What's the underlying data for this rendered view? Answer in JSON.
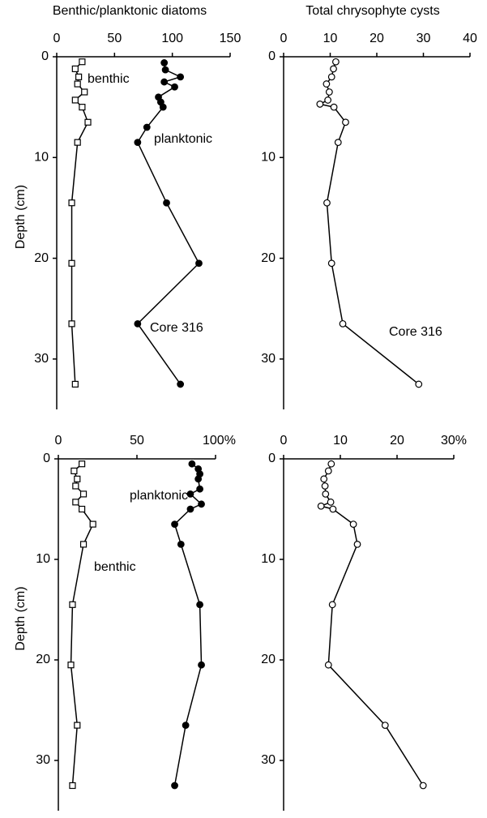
{
  "chart_data": [
    {
      "type": "line",
      "title": "Benthic/planktonic diatoms",
      "ylabel": "Depth (cm)",
      "xlim": [
        0,
        150
      ],
      "xticks": [
        0,
        50,
        100,
        150
      ],
      "ylim": [
        0,
        35
      ],
      "yticks": [
        0,
        10,
        20,
        30
      ],
      "series": [
        {
          "name": "benthic",
          "marker": "square",
          "filled": false,
          "depths": [
            0.5,
            1.2,
            2,
            2.7,
            3.5,
            4.3,
            5,
            6.5,
            8.5,
            14.5,
            20.5,
            26.5,
            32.5
          ],
          "values": [
            22,
            16,
            19,
            18,
            24,
            16,
            22,
            27,
            18,
            13,
            13,
            13,
            16
          ]
        },
        {
          "name": "planktonic",
          "marker": "circle",
          "filled": true,
          "depths": [
            0.6,
            1.3,
            2,
            2.5,
            3,
            4,
            4.5,
            5,
            7,
            8.5,
            14.5,
            20.5,
            26.5,
            32.5
          ],
          "values": [
            93,
            94,
            107,
            93,
            102,
            88,
            90,
            92,
            78,
            70,
            95,
            123,
            70,
            107
          ]
        }
      ],
      "annotations": [
        "Core 316"
      ]
    },
    {
      "type": "line",
      "title": "Total chrysophyte cysts",
      "xlim": [
        0,
        40
      ],
      "xticks": [
        0,
        10,
        20,
        30,
        40
      ],
      "ylim": [
        0,
        35
      ],
      "yticks": [
        0,
        10,
        20,
        30
      ],
      "series": [
        {
          "marker": "circle",
          "filled": false,
          "depths": [
            0.5,
            1.2,
            2,
            2.7,
            3.5,
            4.3,
            4.7,
            5,
            6.5,
            8.5,
            14.5,
            20.5,
            26.5,
            32.5
          ],
          "values": [
            11.2,
            10.7,
            10.3,
            9.2,
            9.8,
            9.5,
            7.8,
            10.8,
            13.3,
            11.7,
            9.3,
            10.3,
            12.7,
            29
          ]
        }
      ],
      "annotations": [
        "Core 316"
      ]
    },
    {
      "type": "line",
      "ylabel": "Depth (cm)",
      "xlim": [
        0,
        100
      ],
      "xticks": [
        0,
        50,
        {
          "value": 100,
          "label": "100%"
        }
      ],
      "ylim": [
        0,
        35
      ],
      "yticks": [
        0,
        10,
        20,
        30
      ],
      "series": [
        {
          "name": "benthic",
          "marker": "square",
          "filled": false,
          "depths": [
            0.5,
            1.2,
            2,
            2.7,
            3.5,
            4.3,
            5,
            6.5,
            8.5,
            14.5,
            20.5,
            26.5,
            32.5
          ],
          "values": [
            15,
            10,
            12,
            11,
            16,
            11,
            15,
            22,
            16,
            9,
            8,
            12,
            9
          ]
        },
        {
          "name": "planktonic",
          "marker": "circle",
          "filled": true,
          "depths": [
            0.5,
            1,
            1.5,
            2,
            3,
            3.5,
            4.5,
            5,
            6.5,
            8.5,
            14.5,
            20.5,
            26.5,
            32.5
          ],
          "values": [
            85,
            89,
            90,
            89,
            90,
            84,
            91,
            84,
            74,
            78,
            90,
            91,
            81,
            74
          ]
        }
      ]
    },
    {
      "type": "line",
      "xlim": [
        0,
        30
      ],
      "xticks": [
        0,
        10,
        20,
        {
          "value": 30,
          "label": "30%"
        }
      ],
      "ylim": [
        0,
        35
      ],
      "yticks": [
        0,
        10,
        20,
        30
      ],
      "series": [
        {
          "marker": "circle",
          "filled": false,
          "depths": [
            0.5,
            1.2,
            2,
            2.7,
            3.5,
            4.3,
            4.7,
            5,
            6.5,
            8.5,
            14.5,
            20.5,
            26.5,
            32.5
          ],
          "values": [
            8.4,
            7.9,
            7.1,
            7.3,
            7.4,
            8.3,
            6.6,
            8.7,
            12.3,
            13,
            8.6,
            7.9,
            17.9,
            24.6
          ]
        }
      ]
    }
  ]
}
